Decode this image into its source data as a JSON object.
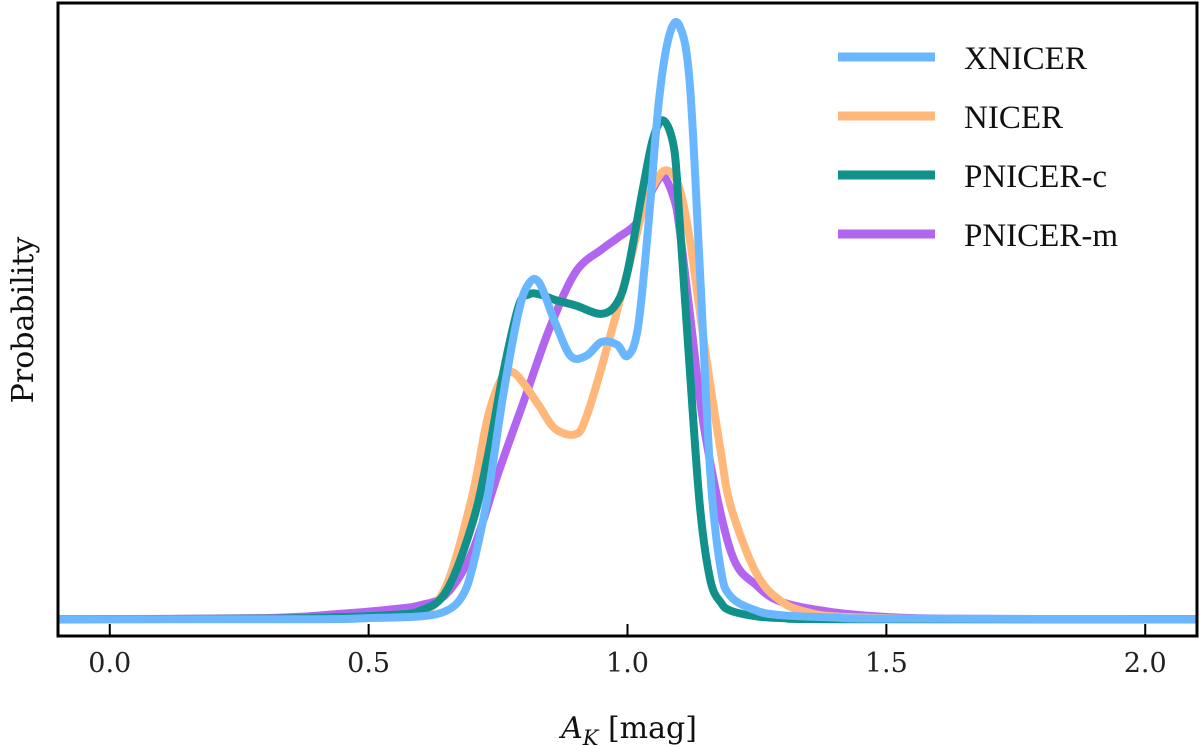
{
  "chart_data": {
    "type": "line",
    "title": "",
    "xlabel_main": "A",
    "xlabel_sub": "K",
    "xlabel_unit": " [mag]",
    "ylabel": "Probability",
    "xlim": [
      -0.1,
      2.1
    ],
    "ylim": [
      -0.03,
      1.1
    ],
    "xticks": [
      0.0,
      0.5,
      1.0,
      1.5,
      2.0
    ],
    "xtick_labels": [
      "0.0",
      "0.5",
      "1.0",
      "1.5",
      "2.0"
    ],
    "legend_position": "top-right",
    "series": [
      {
        "name": "PNICER-m",
        "color": "#b266f0",
        "x": [
          -0.1,
          0.3,
          0.45,
          0.55,
          0.6,
          0.65,
          0.7,
          0.75,
          0.8,
          0.85,
          0.9,
          0.95,
          0.98,
          1.02,
          1.05,
          1.07,
          1.09,
          1.1,
          1.12,
          1.15,
          1.2,
          1.25,
          1.3,
          1.4,
          1.5,
          1.6,
          1.8,
          2.1
        ],
        "y": [
          0.0,
          0.002,
          0.01,
          0.018,
          0.025,
          0.045,
          0.12,
          0.26,
          0.39,
          0.52,
          0.62,
          0.66,
          0.68,
          0.71,
          0.77,
          0.79,
          0.75,
          0.7,
          0.55,
          0.33,
          0.12,
          0.06,
          0.03,
          0.012,
          0.004,
          0.001,
          0.0,
          0.0
        ]
      },
      {
        "name": "NICER",
        "color": "#ffb77a",
        "x": [
          -0.1,
          0.3,
          0.5,
          0.6,
          0.65,
          0.7,
          0.73,
          0.76,
          0.78,
          0.8,
          0.83,
          0.86,
          0.9,
          0.92,
          0.95,
          1.0,
          1.03,
          1.06,
          1.08,
          1.1,
          1.12,
          1.15,
          1.18,
          1.2,
          1.25,
          1.3,
          1.35,
          1.4,
          1.5,
          1.6,
          1.8,
          2.1
        ],
        "y": [
          0.0,
          0.001,
          0.004,
          0.012,
          0.06,
          0.22,
          0.36,
          0.435,
          0.44,
          0.42,
          0.38,
          0.34,
          0.33,
          0.36,
          0.45,
          0.62,
          0.73,
          0.79,
          0.8,
          0.77,
          0.68,
          0.48,
          0.3,
          0.2,
          0.08,
          0.03,
          0.012,
          0.005,
          0.002,
          0.0,
          0.0,
          0.0
        ]
      },
      {
        "name": "PNICER-c",
        "color": "#12918a",
        "x": [
          -0.1,
          0.3,
          0.45,
          0.55,
          0.6,
          0.65,
          0.7,
          0.73,
          0.76,
          0.79,
          0.81,
          0.83,
          0.86,
          0.9,
          0.95,
          0.98,
          1.0,
          1.03,
          1.05,
          1.07,
          1.09,
          1.1,
          1.12,
          1.14,
          1.16,
          1.18,
          1.2,
          1.25,
          1.3,
          1.4,
          2.1
        ],
        "y": [
          0.0,
          0.001,
          0.004,
          0.008,
          0.015,
          0.05,
          0.17,
          0.29,
          0.44,
          0.56,
          0.58,
          0.58,
          0.57,
          0.56,
          0.545,
          0.565,
          0.62,
          0.77,
          0.86,
          0.89,
          0.84,
          0.72,
          0.45,
          0.2,
          0.07,
          0.03,
          0.015,
          0.005,
          0.002,
          0.0,
          0.0
        ]
      },
      {
        "name": "XNICER",
        "color": "#6ab7ff",
        "x": [
          -0.1,
          0.4,
          0.5,
          0.6,
          0.65,
          0.68,
          0.7,
          0.73,
          0.76,
          0.79,
          0.81,
          0.83,
          0.86,
          0.89,
          0.92,
          0.95,
          0.98,
          1.0,
          1.02,
          1.04,
          1.06,
          1.08,
          1.1,
          1.12,
          1.14,
          1.16,
          1.18,
          1.2,
          1.25,
          1.3,
          1.4,
          1.5,
          2.1
        ],
        "y": [
          0.0,
          0.0,
          0.002,
          0.005,
          0.015,
          0.04,
          0.09,
          0.22,
          0.4,
          0.55,
          0.6,
          0.6,
          0.53,
          0.47,
          0.47,
          0.495,
          0.49,
          0.47,
          0.52,
          0.7,
          0.92,
          1.04,
          1.06,
          0.96,
          0.62,
          0.26,
          0.09,
          0.04,
          0.015,
          0.007,
          0.003,
          0.001,
          0.0
        ]
      }
    ],
    "legend_order": [
      "XNICER",
      "NICER",
      "PNICER-c",
      "PNICER-m"
    ]
  }
}
